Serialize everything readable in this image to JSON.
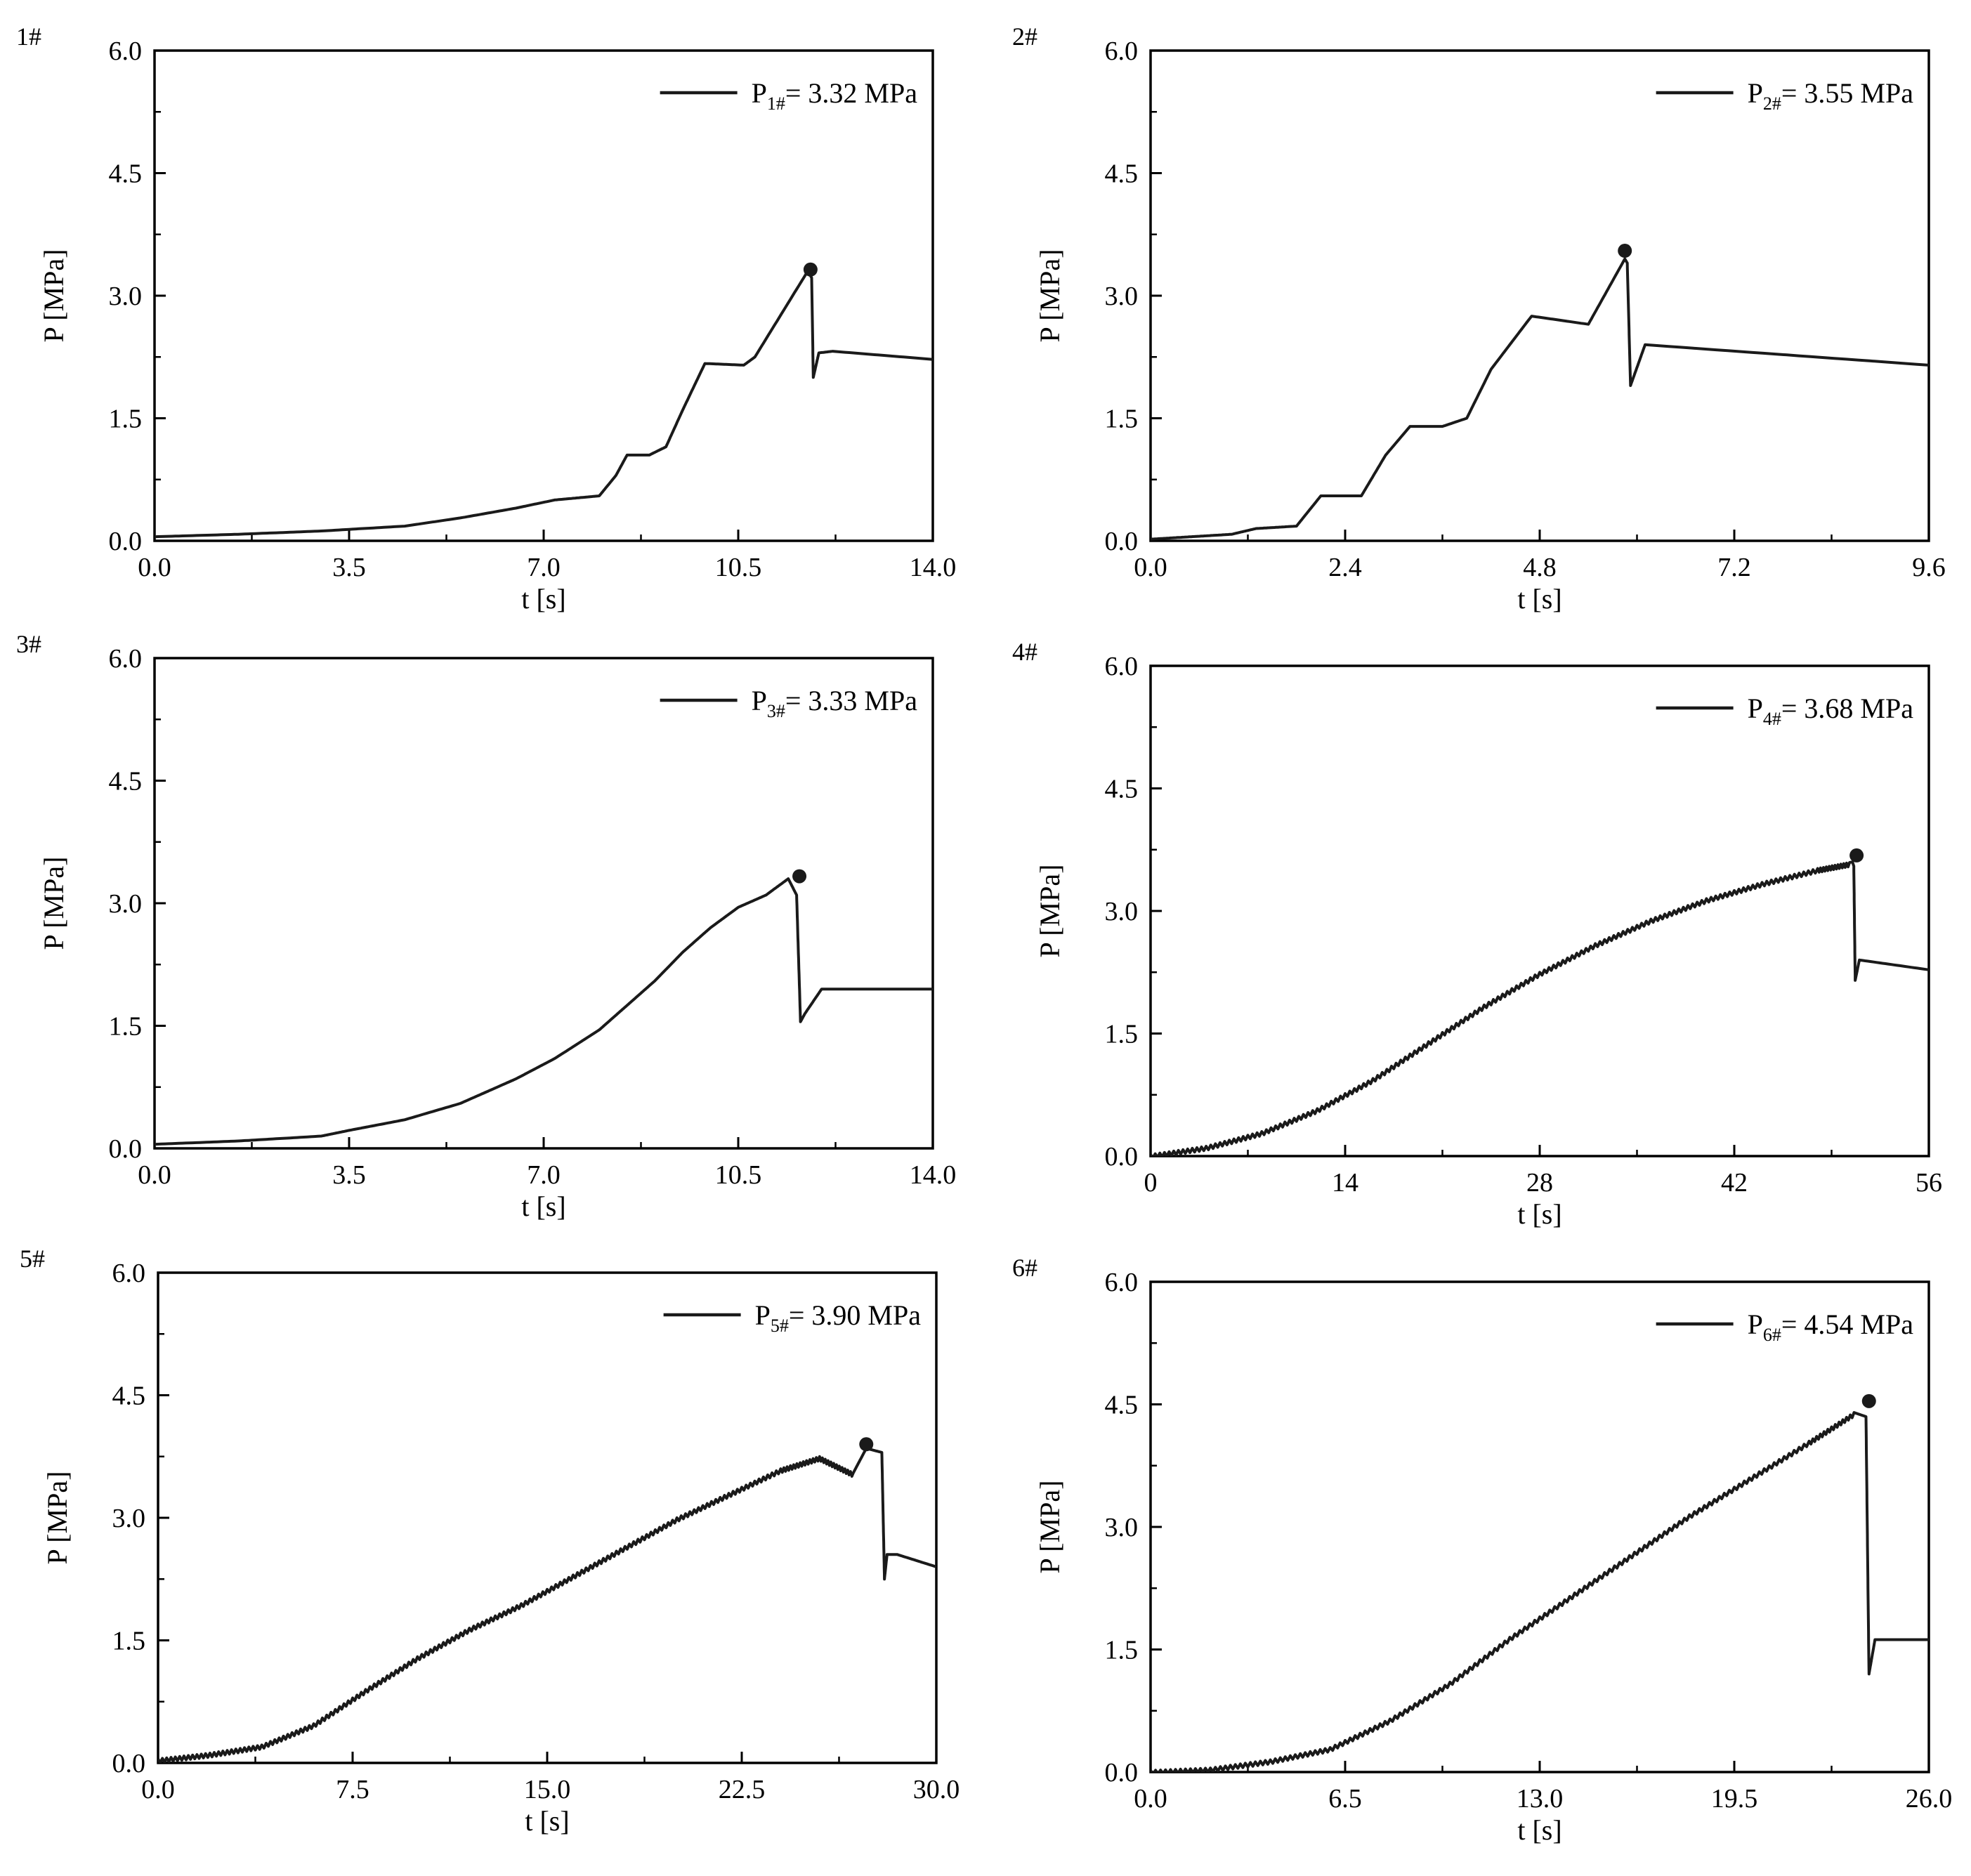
{
  "figure": {
    "colors": {
      "line": "#1a1a1a",
      "axis": "#000000",
      "background": "#ffffff"
    },
    "common": {
      "ylabel": "P [MPa]",
      "xlabel": "t [s]",
      "yticks": [
        "0.0",
        "1.5",
        "3.0",
        "4.5",
        "6.0"
      ],
      "unit": "MPa"
    }
  },
  "chart_data": [
    {
      "type": "line",
      "panel": "1#",
      "xlabel": "t [s]",
      "ylabel": "P [MPa]",
      "xlim": [
        0,
        14
      ],
      "ylim": [
        0,
        6
      ],
      "xticks": [
        "0.0",
        "3.5",
        "7.0",
        "10.5",
        "14.0"
      ],
      "yticks": [
        "0.0",
        "1.5",
        "3.0",
        "4.5",
        "6.0"
      ],
      "legend": {
        "symbol": "P",
        "sub": "1#",
        "rest": "= 3.32 MPa"
      },
      "peak": {
        "x": 11.8,
        "y": 3.32
      },
      "series": [
        {
          "name": "P1#",
          "x": [
            0,
            1.5,
            3,
            4.5,
            5.5,
            6.5,
            7.2,
            8.0,
            8.3,
            8.5,
            8.9,
            9.2,
            9.5,
            9.9,
            10.6,
            10.8,
            11.75,
            11.82,
            11.85,
            11.95,
            12.2,
            14.0
          ],
          "y": [
            0.05,
            0.08,
            0.12,
            0.18,
            0.28,
            0.4,
            0.5,
            0.55,
            0.8,
            1.05,
            1.05,
            1.15,
            1.6,
            2.17,
            2.15,
            2.25,
            3.3,
            3.22,
            2.0,
            2.3,
            2.32,
            2.22
          ]
        }
      ]
    },
    {
      "type": "line",
      "panel": "2#",
      "xlabel": "t [s]",
      "ylabel": "P [MPa]",
      "xlim": [
        0,
        9.6
      ],
      "ylim": [
        0,
        6
      ],
      "xticks": [
        "0.0",
        "2.4",
        "4.8",
        "7.2",
        "9.6"
      ],
      "yticks": [
        "0.0",
        "1.5",
        "3.0",
        "4.5",
        "6.0"
      ],
      "legend": {
        "symbol": "P",
        "sub": "2#",
        "rest": "= 3.55 MPa"
      },
      "peak": {
        "x": 5.85,
        "y": 3.55
      },
      "series": [
        {
          "name": "P2#",
          "x": [
            0,
            0.5,
            1.0,
            1.3,
            1.8,
            2.1,
            2.6,
            2.9,
            3.2,
            3.6,
            3.9,
            4.2,
            4.7,
            5.4,
            5.85,
            5.88,
            5.92,
            6.1,
            9.6
          ],
          "y": [
            0.02,
            0.05,
            0.08,
            0.15,
            0.18,
            0.55,
            0.55,
            1.05,
            1.4,
            1.4,
            1.5,
            2.1,
            2.75,
            2.65,
            3.45,
            3.4,
            1.9,
            2.4,
            2.15
          ]
        }
      ]
    },
    {
      "type": "line",
      "panel": "3#",
      "xlabel": "t [s]",
      "ylabel": "P [MPa]",
      "xlim": [
        0,
        14
      ],
      "ylim": [
        0,
        6
      ],
      "xticks": [
        "0.0",
        "3.5",
        "7.0",
        "10.5",
        "14.0"
      ],
      "yticks": [
        "0.0",
        "1.5",
        "3.0",
        "4.5",
        "6.0"
      ],
      "legend": {
        "symbol": "P",
        "sub": "3#",
        "rest": "= 3.33 MPa"
      },
      "peak": {
        "x": 11.6,
        "y": 3.33
      },
      "series": [
        {
          "name": "P3#",
          "x": [
            0,
            1.5,
            3,
            3.5,
            4.5,
            5.5,
            6.5,
            7.2,
            8.0,
            8.5,
            9.0,
            9.5,
            10.0,
            10.5,
            11.0,
            11.4,
            11.55,
            11.62,
            11.7,
            12.0,
            14.0
          ],
          "y": [
            0.05,
            0.09,
            0.15,
            0.22,
            0.35,
            0.55,
            0.85,
            1.1,
            1.45,
            1.75,
            2.05,
            2.4,
            2.7,
            2.95,
            3.1,
            3.3,
            3.1,
            1.55,
            1.65,
            1.95,
            1.95
          ]
        }
      ]
    },
    {
      "type": "line",
      "panel": "4#",
      "xlabel": "t [s]",
      "ylabel": "P [MPa]",
      "xlim": [
        0,
        56
      ],
      "ylim": [
        0,
        6
      ],
      "xticks": [
        "0",
        "14",
        "28",
        "42",
        "56"
      ],
      "yticks": [
        "0.0",
        "1.5",
        "3.0",
        "4.5",
        "6.0"
      ],
      "legend": {
        "symbol": "P",
        "sub": "4#",
        "rest": "= 3.68 MPa"
      },
      "peak": {
        "x": 50.8,
        "y": 3.68
      },
      "series": [
        {
          "name": "P4#",
          "x": [
            0,
            4,
            8,
            12,
            16,
            20,
            24,
            28,
            32,
            36,
            40,
            44,
            48,
            50.5,
            50.6,
            50.7,
            51.0,
            56
          ],
          "y": [
            0.02,
            0.12,
            0.3,
            0.58,
            0.95,
            1.4,
            1.85,
            2.25,
            2.6,
            2.9,
            3.15,
            3.35,
            3.52,
            3.6,
            3.55,
            2.15,
            2.4,
            2.28
          ]
        }
      ]
    },
    {
      "type": "line",
      "panel": "5#",
      "xlabel": "t [s]",
      "ylabel": "P [MPa]",
      "xlim": [
        0,
        30
      ],
      "ylim": [
        0,
        6
      ],
      "xticks": [
        "0.0",
        "7.5",
        "15.0",
        "22.5",
        "30.0"
      ],
      "yticks": [
        "0.0",
        "1.5",
        "3.0",
        "4.5",
        "6.0"
      ],
      "legend": {
        "symbol": "P",
        "sub": "5#",
        "rest": "= 3.90 MPa"
      },
      "peak": {
        "x": 27.3,
        "y": 3.9
      },
      "series": [
        {
          "name": "P5#",
          "x": [
            0,
            2,
            4,
            6,
            8,
            10,
            12,
            14,
            16,
            18,
            20,
            22,
            24,
            25.5,
            26.8,
            27.3,
            27.9,
            28.0,
            28.1,
            28.5,
            30.0
          ],
          "y": [
            0.05,
            0.12,
            0.22,
            0.48,
            0.9,
            1.3,
            1.65,
            1.95,
            2.3,
            2.65,
            3.0,
            3.3,
            3.6,
            3.75,
            3.55,
            3.85,
            3.8,
            2.25,
            2.55,
            2.55,
            2.4
          ]
        }
      ]
    },
    {
      "type": "line",
      "panel": "6#",
      "xlabel": "t [s]",
      "ylabel": "P [MPa]",
      "xlim": [
        0,
        26
      ],
      "ylim": [
        0,
        6
      ],
      "xticks": [
        "0.0",
        "6.5",
        "13.0",
        "19.5",
        "26.0"
      ],
      "yticks": [
        "0.0",
        "1.5",
        "3.0",
        "4.5",
        "6.0"
      ],
      "legend": {
        "symbol": "P",
        "sub": "6#",
        "rest": "= 4.54 MPa"
      },
      "peak": {
        "x": 24.0,
        "y": 4.54
      },
      "series": [
        {
          "name": "P6#",
          "x": [
            0,
            2,
            4,
            6,
            8,
            10,
            12,
            14,
            16,
            18,
            20,
            22,
            23.5,
            23.9,
            24.0,
            24.2,
            26.0
          ],
          "y": [
            0.02,
            0.05,
            0.15,
            0.3,
            0.65,
            1.1,
            1.65,
            2.15,
            2.65,
            3.15,
            3.6,
            4.05,
            4.4,
            4.35,
            1.2,
            1.62,
            1.62
          ]
        }
      ]
    }
  ]
}
